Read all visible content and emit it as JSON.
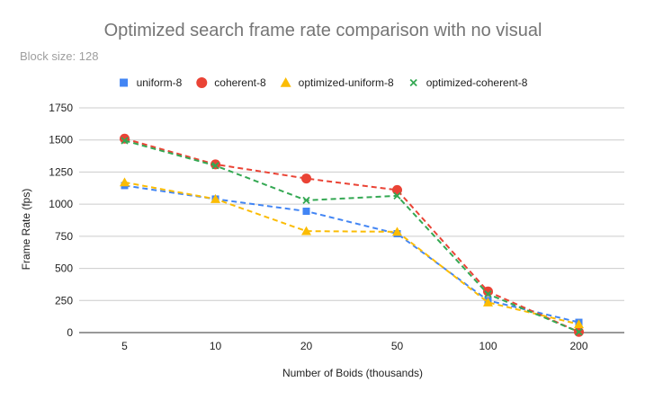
{
  "chart_data": {
    "type": "line",
    "title": "Optimized search frame rate comparison with no visual",
    "subtitle": "Block size: 128",
    "xlabel": "Number of Boids (thousands)",
    "ylabel": "Frame Rate (fps)",
    "categories": [
      "5",
      "10",
      "20",
      "50",
      "100",
      "200"
    ],
    "ylim": [
      0,
      1750
    ],
    "yticks": [
      0,
      250,
      500,
      750,
      1000,
      1250,
      1500,
      1750
    ],
    "ytick_labels": [
      "0",
      "250",
      "500",
      "750",
      "1000",
      "1250",
      "1500",
      "1750"
    ],
    "grid": true,
    "legend_position": "top",
    "series": [
      {
        "name": "uniform-8",
        "marker": "square",
        "color": "#4285f4",
        "values": [
          1145,
          1040,
          945,
          770,
          250,
          80
        ]
      },
      {
        "name": "coherent-8",
        "marker": "circle",
        "color": "#ea4335",
        "values": [
          1510,
          1310,
          1200,
          1110,
          320,
          5
        ]
      },
      {
        "name": "optimized-uniform-8",
        "marker": "triangle",
        "color": "#fbbc04",
        "values": [
          1170,
          1040,
          790,
          785,
          235,
          65
        ]
      },
      {
        "name": "optimized-coherent-8",
        "marker": "x",
        "color": "#34a853",
        "values": [
          1495,
          1300,
          1030,
          1065,
          300,
          5
        ]
      }
    ]
  }
}
